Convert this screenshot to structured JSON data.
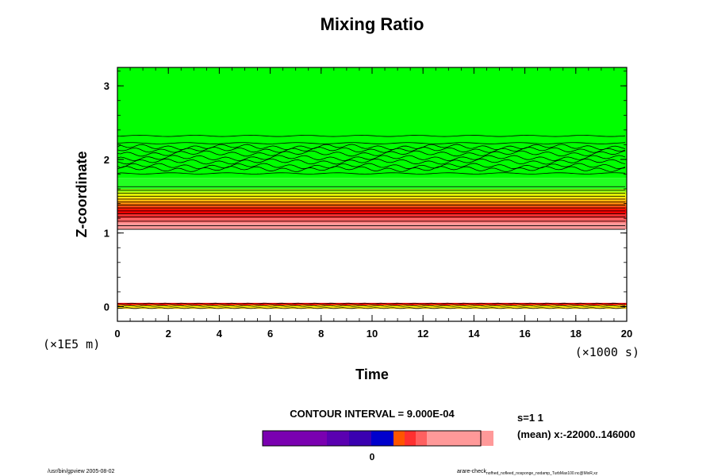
{
  "chart_data": {
    "type": "heatmap",
    "title": "Mixing Ratio",
    "xlabel": "Time",
    "ylabel": "Z-coordinate",
    "x_unit_label": "(×1000 s)",
    "y_unit_label": "(×1E5 m)",
    "xlim": [
      0,
      20
    ],
    "ylim": [
      -0.2,
      3.25
    ],
    "x_ticks": [
      0,
      2,
      4,
      6,
      8,
      10,
      12,
      14,
      16,
      18,
      20
    ],
    "y_ticks": [
      0,
      1,
      2,
      3
    ],
    "grid": false,
    "bands": [
      {
        "z0": 1.75,
        "z1": 3.25,
        "color": "#00ff00"
      },
      {
        "z0": 1.6,
        "z1": 1.75,
        "color": "#22ff22"
      },
      {
        "z0": 1.56,
        "z1": 1.6,
        "color": "#7fff00"
      },
      {
        "z0": 1.52,
        "z1": 1.56,
        "color": "#ccff00"
      },
      {
        "z0": 1.48,
        "z1": 1.52,
        "color": "#ffff00"
      },
      {
        "z0": 1.44,
        "z1": 1.48,
        "color": "#ffcc00"
      },
      {
        "z0": 1.4,
        "z1": 1.44,
        "color": "#ff9900"
      },
      {
        "z0": 1.36,
        "z1": 1.4,
        "color": "#ff6600"
      },
      {
        "z0": 1.32,
        "z1": 1.36,
        "color": "#ff2200"
      },
      {
        "z0": 1.26,
        "z1": 1.32,
        "color": "#ff0000"
      },
      {
        "z0": 1.2,
        "z1": 1.26,
        "color": "#ff3030"
      },
      {
        "z0": 1.14,
        "z1": 1.2,
        "color": "#ff6060"
      },
      {
        "z0": 1.05,
        "z1": 1.14,
        "color": "#ff9999"
      },
      {
        "z0": 0.02,
        "z1": 0.05,
        "color": "#ff0000"
      },
      {
        "z0": -0.01,
        "z1": 0.02,
        "color": "#ffff00"
      },
      {
        "z0": -0.03,
        "z1": -0.01,
        "color": "#ffcc00"
      }
    ],
    "contour_levels_z": [
      1.63,
      1.58,
      1.54,
      1.5,
      1.46,
      1.42,
      1.38,
      1.34,
      1.3,
      1.26,
      1.22,
      1.16,
      1.1,
      1.05,
      2.32,
      2.22,
      2.17,
      2.13,
      2.08,
      2.02,
      1.97,
      1.91,
      1.87,
      1.81,
      0.04,
      0.01,
      -0.02
    ],
    "wavy_levels_z": [
      2.17,
      2.13,
      2.08,
      2.02,
      1.97,
      1.91,
      1.87
    ],
    "contour_interval_label": "CONTOUR INTERVAL = 9.000E-04",
    "colorbar": {
      "colors": [
        "#7a00b0",
        "#7a00b0",
        "#7a00b0",
        "#5a00b0",
        "#3a00b0",
        "#0000cc",
        "#ff5500",
        "#ff3030",
        "#ff6060",
        "#ff9999",
        "#ff9999",
        "#ff9999"
      ],
      "widths": [
        27,
        27,
        27,
        28,
        28,
        28,
        14,
        14,
        14,
        28,
        28,
        28
      ],
      "zero_label": "0"
    }
  },
  "side_info": {
    "line1": "s=1 1",
    "line2": "(mean) x:-22000..146000"
  },
  "footer": {
    "left": "/usr/bin/gpview 2005-08-02",
    "right_prefix": "arare-check",
    "right_sub": "nofhed_nofleed_nosponge_nodamp_TurbMax100.nc@MixR,xz"
  }
}
